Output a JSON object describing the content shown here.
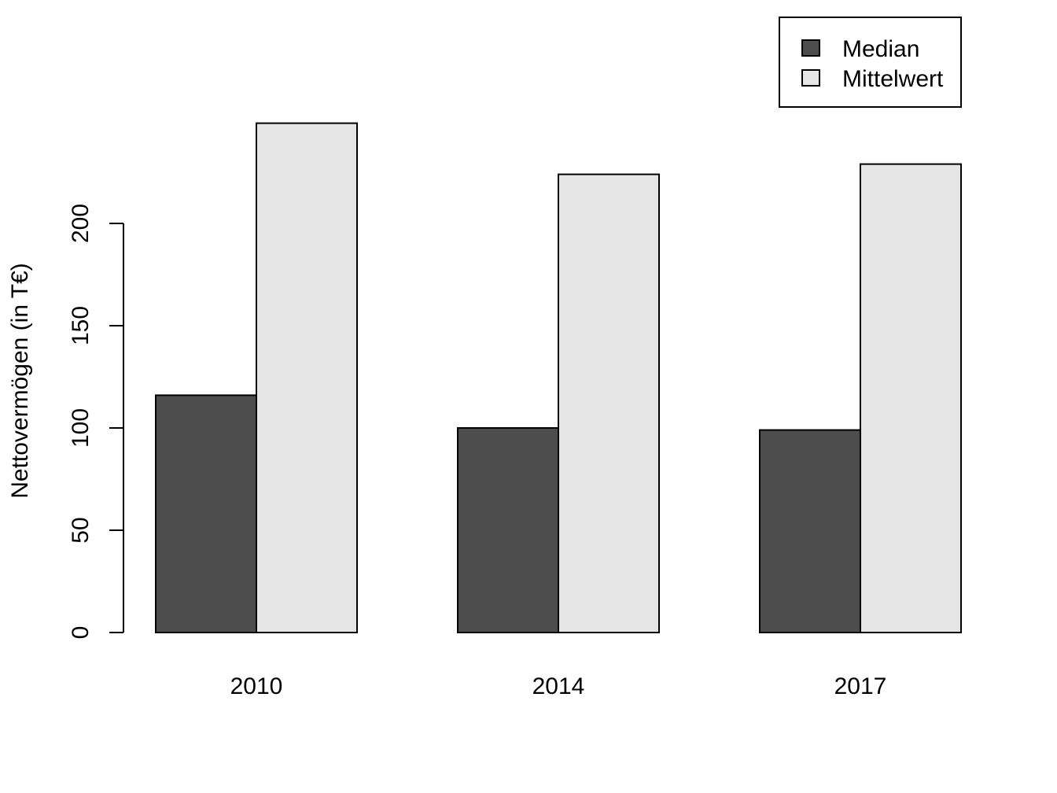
{
  "chart_data": {
    "type": "bar",
    "categories": [
      "2010",
      "2014",
      "2017"
    ],
    "series": [
      {
        "name": "Median",
        "values": [
          116,
          100,
          99
        ],
        "color": "#4d4d4d"
      },
      {
        "name": "Mittelwert",
        "values": [
          249,
          224,
          229
        ],
        "color": "#e6e6e6"
      }
    ],
    "ylabel": "Nettovermögen (in T€)",
    "xlabel": "",
    "title": "",
    "yticks": [
      0,
      50,
      100,
      150,
      200
    ],
    "ylim": [
      0,
      250
    ],
    "grid": false,
    "legend_position": "top-right"
  }
}
